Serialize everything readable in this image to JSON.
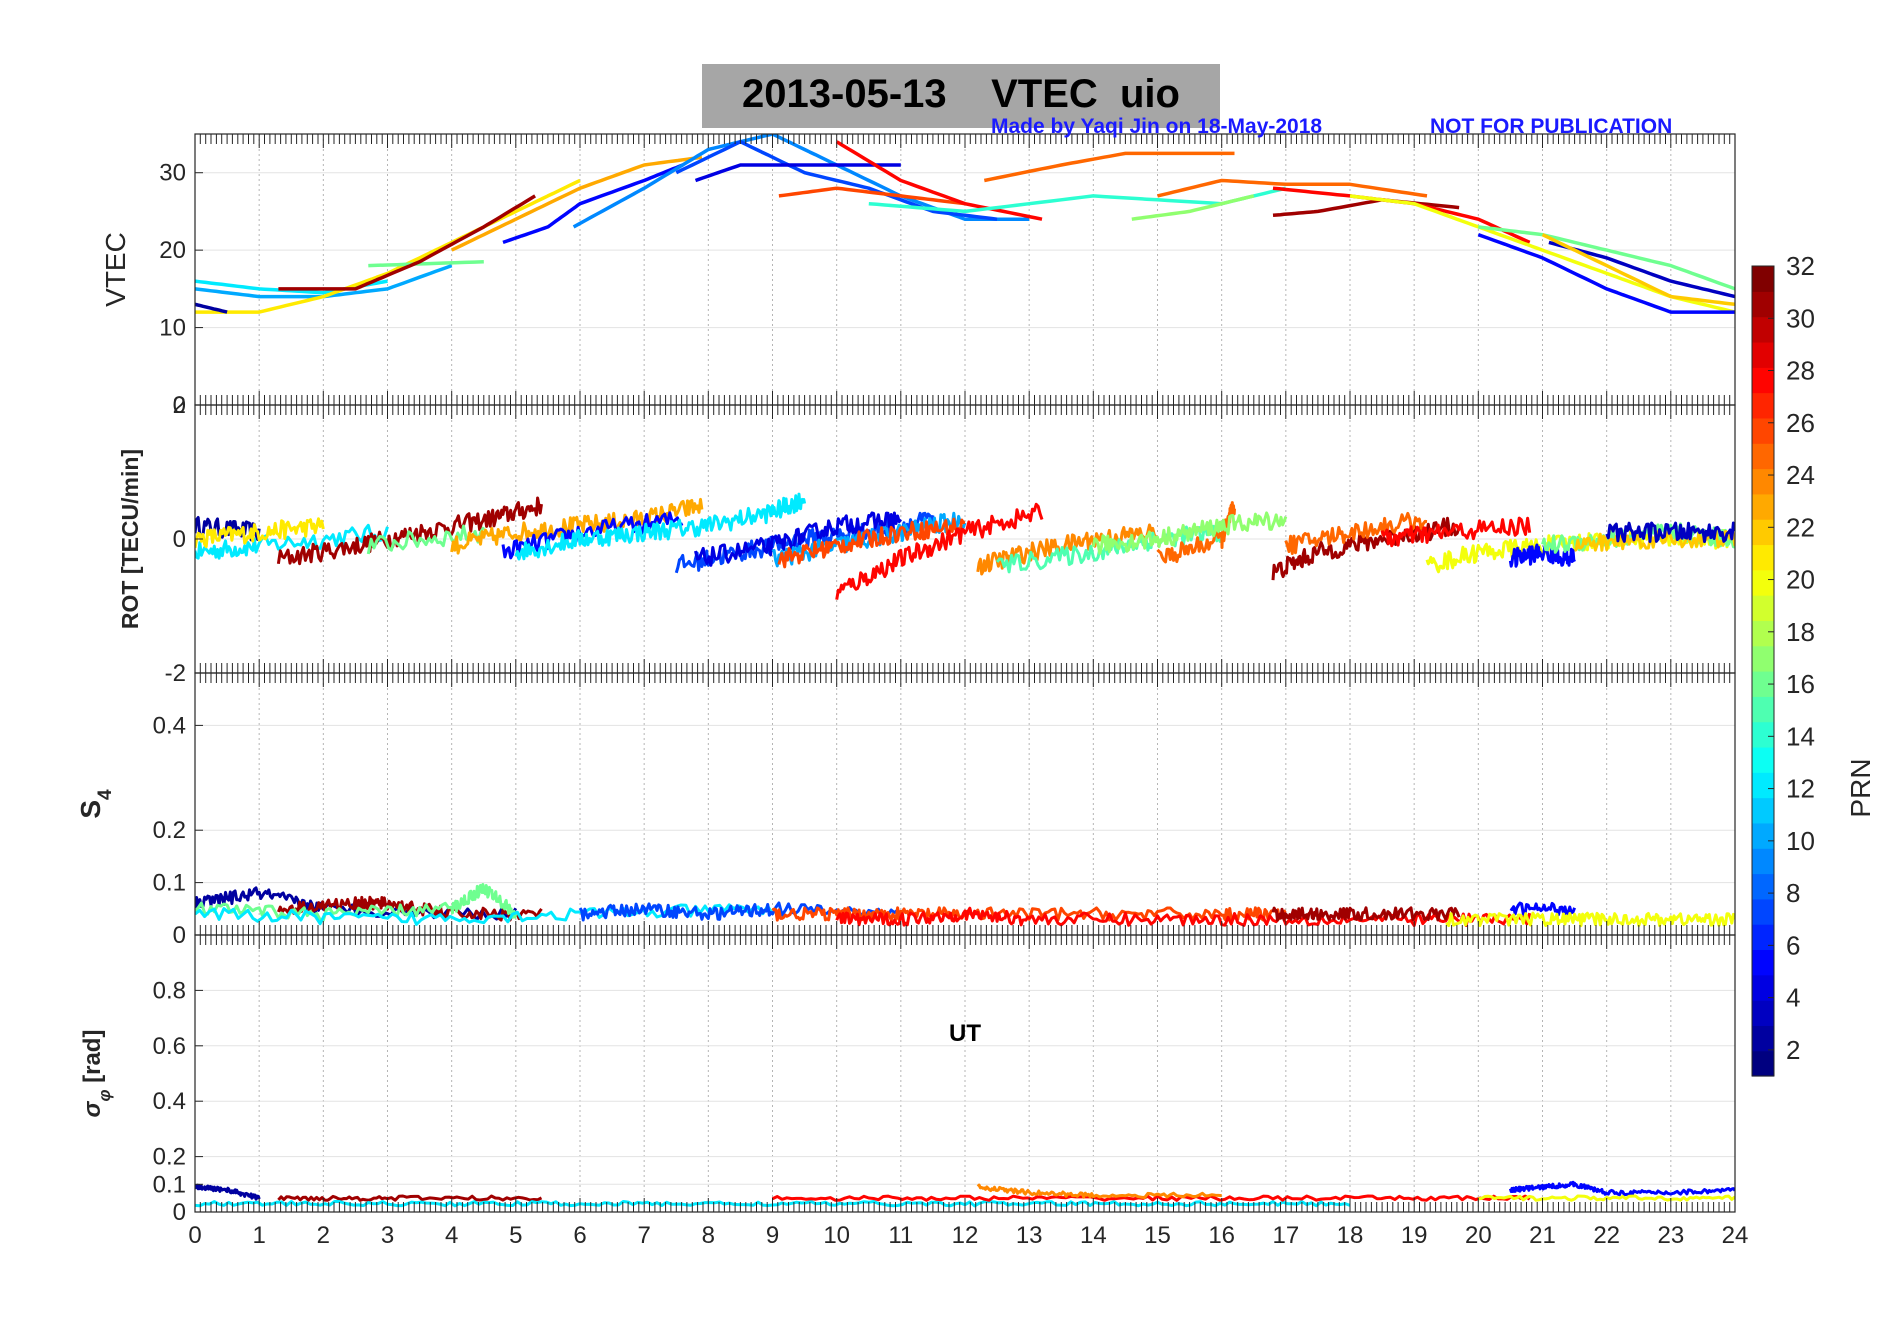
{
  "figure": {
    "title": "2013-05-13    VTEC  uio",
    "credit": "Made by Yaqi Jin on 18-May-2018",
    "notice": "NOT FOR PUBLICATION",
    "xlabel": "UT",
    "x_range": [
      0,
      24
    ],
    "x_ticks": [
      "0",
      "1",
      "2",
      "3",
      "4",
      "5",
      "6",
      "7",
      "8",
      "9",
      "10",
      "11",
      "12",
      "13",
      "14",
      "15",
      "16",
      "17",
      "18",
      "19",
      "20",
      "21",
      "22",
      "23",
      "24"
    ]
  },
  "colorbar": {
    "label": "PRN",
    "range": [
      1,
      32
    ],
    "colormap": "jet",
    "ticks": [
      "2",
      "4",
      "6",
      "8",
      "10",
      "12",
      "14",
      "16",
      "18",
      "20",
      "22",
      "24",
      "26",
      "28",
      "30",
      "32"
    ]
  },
  "chart_data": [
    {
      "type": "line",
      "ylabel": "VTEC",
      "ylim": [
        0,
        35
      ],
      "yticks": [
        "0",
        "10",
        "20",
        "30"
      ],
      "grid": true,
      "series": [
        {
          "prn": 12,
          "x": [
            0,
            1,
            2,
            3
          ],
          "y": [
            16,
            15,
            14.5,
            16
          ]
        },
        {
          "prn": 10,
          "x": [
            0,
            1,
            2,
            3,
            4
          ],
          "y": [
            15,
            14,
            14,
            15,
            18
          ]
        },
        {
          "prn": 21,
          "x": [
            0,
            1,
            2,
            3,
            4,
            5,
            6
          ],
          "y": [
            12,
            12,
            14,
            17,
            21,
            25,
            29
          ]
        },
        {
          "prn": 2,
          "x": [
            0,
            0.5
          ],
          "y": [
            13,
            12
          ]
        },
        {
          "prn": 16,
          "x": [
            2.7,
            4.5
          ],
          "y": [
            18,
            18.5
          ]
        },
        {
          "prn": 31,
          "x": [
            1.3,
            2.5,
            3.5,
            4.5,
            5.3
          ],
          "y": [
            15,
            15,
            18.5,
            23,
            27
          ]
        },
        {
          "prn": 23,
          "x": [
            4,
            5,
            6,
            7,
            7.9
          ],
          "y": [
            20,
            24,
            28,
            31,
            32
          ]
        },
        {
          "prn": 5,
          "x": [
            4.8,
            5.5,
            6,
            7,
            7.6
          ],
          "y": [
            21,
            23,
            26,
            29,
            31
          ]
        },
        {
          "prn": 9,
          "x": [
            5.9,
            7,
            8,
            9,
            10,
            11,
            12,
            13
          ],
          "y": [
            23,
            28,
            33,
            35,
            31,
            27,
            24,
            24
          ]
        },
        {
          "prn": 7,
          "x": [
            7.5,
            8.5,
            9.5,
            10.5,
            11.5,
            12.5
          ],
          "y": [
            30,
            34,
            30,
            28,
            25,
            24
          ]
        },
        {
          "prn": 4,
          "x": [
            7.8,
            8.5,
            9.5,
            10.5,
            11
          ],
          "y": [
            29,
            31,
            31,
            31,
            31
          ]
        },
        {
          "prn": 26,
          "x": [
            9.1,
            10,
            11,
            12
          ],
          "y": [
            27,
            28,
            27,
            26
          ]
        },
        {
          "prn": 28,
          "x": [
            10,
            11,
            12,
            13.2
          ],
          "y": [
            34,
            29,
            26,
            24
          ]
        },
        {
          "prn": 14,
          "x": [
            10.5,
            12,
            14,
            16,
            17
          ],
          "y": [
            26,
            25,
            27,
            26,
            28
          ]
        },
        {
          "prn": 25,
          "x": [
            12.3,
            13.5,
            14.5,
            15.5,
            16.2
          ],
          "y": [
            29,
            31,
            32.5,
            32.5,
            32.5
          ]
        },
        {
          "prn": 17,
          "x": [
            14.6,
            15.5,
            16.5
          ],
          "y": [
            24,
            25,
            27
          ]
        },
        {
          "prn": 25,
          "x": [
            15,
            16,
            17,
            18,
            19.2
          ],
          "y": [
            27,
            29,
            28.5,
            28.5,
            27
          ]
        },
        {
          "prn": 31,
          "x": [
            16.8,
            17.5,
            18.5,
            19.7
          ],
          "y": [
            24.5,
            25,
            26.5,
            25.5
          ]
        },
        {
          "prn": 28,
          "x": [
            16.8,
            18,
            19,
            20,
            20.8
          ],
          "y": [
            28,
            27,
            26,
            24,
            21
          ]
        },
        {
          "prn": 20,
          "x": [
            18,
            19,
            20,
            21,
            22,
            23,
            24
          ],
          "y": [
            27,
            26,
            23,
            20,
            17,
            14,
            12
          ]
        },
        {
          "prn": 16,
          "x": [
            20,
            21,
            22,
            23,
            24
          ],
          "y": [
            23,
            22,
            20,
            18,
            15
          ]
        },
        {
          "prn": 5,
          "x": [
            20,
            21,
            22,
            23,
            24
          ],
          "y": [
            22,
            19,
            15,
            12,
            12
          ]
        },
        {
          "prn": 3,
          "x": [
            21.1,
            22,
            23,
            24
          ],
          "y": [
            21,
            19,
            16,
            14
          ]
        },
        {
          "prn": 22,
          "x": [
            21,
            22,
            23,
            24
          ],
          "y": [
            22,
            18,
            14,
            13
          ]
        }
      ]
    },
    {
      "type": "line",
      "ylabel": "ROT [TECU/min]",
      "ylim": [
        -2,
        2
      ],
      "yticks": [
        "-2",
        "0",
        "2"
      ],
      "grid": true,
      "series": [
        {
          "prn": 2,
          "x": [
            0,
            1
          ],
          "y": [
            0.2,
            0.1
          ]
        },
        {
          "prn": 12,
          "x": [
            0,
            1,
            3
          ],
          "y": [
            -0.2,
            -0.1,
            0.1
          ]
        },
        {
          "prn": 21,
          "x": [
            0,
            1,
            2
          ],
          "y": [
            0,
            0.1,
            0.2
          ]
        },
        {
          "prn": 31,
          "x": [
            1.3,
            2.5,
            3.5,
            4.6,
            5.4
          ],
          "y": [
            -0.3,
            -0.1,
            0.1,
            0.3,
            0.5
          ]
        },
        {
          "prn": 16,
          "x": [
            2.7,
            4.5
          ],
          "y": [
            -0.1,
            0.1
          ]
        },
        {
          "prn": 23,
          "x": [
            4,
            5,
            6,
            7,
            7.9
          ],
          "y": [
            -0.1,
            0.1,
            0.2,
            0.3,
            0.5
          ]
        },
        {
          "prn": 5,
          "x": [
            4.8,
            6,
            7.6
          ],
          "y": [
            -0.2,
            0.1,
            0.3
          ]
        },
        {
          "prn": 12,
          "x": [
            5,
            6,
            7,
            8,
            9,
            9.5
          ],
          "y": [
            -0.2,
            0,
            0.1,
            0.2,
            0.4,
            0.6
          ]
        },
        {
          "prn": 7,
          "x": [
            7.5,
            8.5,
            9.5,
            10.5,
            11.5
          ],
          "y": [
            -0.4,
            -0.2,
            0,
            0.1,
            0.3
          ]
        },
        {
          "prn": 4,
          "x": [
            7.8,
            9,
            10,
            11
          ],
          "y": [
            -0.3,
            -0.1,
            0.2,
            0.3
          ]
        },
        {
          "prn": 10,
          "x": [
            9,
            10,
            11,
            12
          ],
          "y": [
            -0.3,
            -0.1,
            0.1,
            0.3
          ]
        },
        {
          "prn": 26,
          "x": [
            9.1,
            10,
            11,
            12
          ],
          "y": [
            -0.3,
            -0.1,
            0.1,
            0.2
          ]
        },
        {
          "prn": 28,
          "x": [
            10,
            11,
            12,
            13.2
          ],
          "y": [
            -0.8,
            -0.3,
            0.1,
            0.4
          ]
        },
        {
          "prn": 24,
          "x": [
            12.2,
            13,
            14,
            15
          ],
          "y": [
            -0.4,
            -0.2,
            0,
            0.1
          ]
        },
        {
          "prn": 15,
          "x": [
            12.5,
            14,
            15,
            16
          ],
          "y": [
            -0.4,
            -0.2,
            0,
            0.1
          ]
        },
        {
          "prn": 25,
          "x": [
            15,
            16,
            16.2
          ],
          "y": [
            -0.3,
            0,
            0.5
          ]
        },
        {
          "prn": 17,
          "x": [
            14,
            15,
            16,
            17
          ],
          "y": [
            -0.1,
            0,
            0.2,
            0.3
          ]
        },
        {
          "prn": 31,
          "x": [
            16.8,
            17.5,
            18.5,
            19.7
          ],
          "y": [
            -0.5,
            -0.2,
            0,
            0.2
          ]
        },
        {
          "prn": 25,
          "x": [
            17,
            18,
            19.2
          ],
          "y": [
            -0.1,
            0.1,
            0.3
          ]
        },
        {
          "prn": 28,
          "x": [
            18.5,
            19.5,
            20.8
          ],
          "y": [
            0,
            0.1,
            0.2
          ]
        },
        {
          "prn": 20,
          "x": [
            19.2,
            20,
            21,
            22,
            23,
            24
          ],
          "y": [
            -0.4,
            -0.2,
            -0.1,
            0,
            0,
            0
          ]
        },
        {
          "prn": 5,
          "x": [
            20.5,
            21,
            21.5
          ],
          "y": [
            -0.3,
            -0.2,
            -0.3
          ]
        },
        {
          "prn": 16,
          "x": [
            21,
            22,
            23,
            24
          ],
          "y": [
            -0.1,
            0,
            0.1,
            0
          ]
        },
        {
          "prn": 22,
          "x": [
            21.5,
            22.5,
            24
          ],
          "y": [
            -0.1,
            0,
            0
          ]
        },
        {
          "prn": 3,
          "x": [
            22,
            23,
            24
          ],
          "y": [
            0.1,
            0.1,
            0.1
          ]
        }
      ]
    },
    {
      "type": "line",
      "ylabel": "S4",
      "ylim": [
        0,
        0.5
      ],
      "yticks": [
        "0",
        "0.1",
        "0.2",
        "0.4"
      ],
      "grid": true,
      "series": [
        {
          "prn": 2,
          "x": [
            0,
            1,
            2,
            5
          ],
          "y": [
            0.06,
            0.08,
            0.05,
            0.04
          ]
        },
        {
          "prn": 31,
          "x": [
            1.3,
            2.5,
            3,
            4,
            5.4
          ],
          "y": [
            0.05,
            0.06,
            0.06,
            0.04,
            0.04
          ]
        },
        {
          "prn": 16,
          "x": [
            0,
            2,
            4,
            4.5,
            5
          ],
          "y": [
            0.05,
            0.04,
            0.05,
            0.09,
            0.04
          ]
        },
        {
          "prn": 12,
          "x": [
            0,
            3,
            6,
            9
          ],
          "y": [
            0.04,
            0.03,
            0.04,
            0.05
          ]
        },
        {
          "prn": 7,
          "x": [
            6,
            7,
            8,
            9,
            11
          ],
          "y": [
            0.04,
            0.05,
            0.04,
            0.05,
            0.04
          ]
        },
        {
          "prn": 26,
          "x": [
            9,
            10,
            11,
            12,
            14,
            16,
            17
          ],
          "y": [
            0.04,
            0.04,
            0.04,
            0.04,
            0.04,
            0.04,
            0.04
          ]
        },
        {
          "prn": 28,
          "x": [
            10,
            11,
            12,
            13,
            15,
            17,
            19,
            20.8
          ],
          "y": [
            0.03,
            0.03,
            0.04,
            0.03,
            0.03,
            0.03,
            0.03,
            0.03
          ]
        },
        {
          "prn": 31,
          "x": [
            16.8,
            17.5,
            18.5,
            19.7
          ],
          "y": [
            0.04,
            0.04,
            0.04,
            0.04
          ]
        },
        {
          "prn": 5,
          "x": [
            20.5,
            21.5
          ],
          "y": [
            0.05,
            0.05
          ]
        },
        {
          "prn": 20,
          "x": [
            19.5,
            21,
            22,
            23,
            24
          ],
          "y": [
            0.03,
            0.03,
            0.03,
            0.03,
            0.03
          ]
        }
      ]
    },
    {
      "type": "line",
      "ylabel": "σφ [rad]",
      "ylim": [
        0,
        1
      ],
      "yticks": [
        "0",
        "0.1",
        "0.2",
        "0.4",
        "0.6",
        "0.8"
      ],
      "grid": true,
      "series": [
        {
          "prn": 2,
          "x": [
            0,
            0.5,
            1
          ],
          "y": [
            0.09,
            0.08,
            0.05
          ]
        },
        {
          "prn": 31,
          "x": [
            1.3,
            3,
            5.4
          ],
          "y": [
            0.05,
            0.05,
            0.05
          ]
        },
        {
          "prn": 12,
          "x": [
            0,
            3,
            6,
            9,
            12,
            15,
            18
          ],
          "y": [
            0.03,
            0.03,
            0.03,
            0.03,
            0.03,
            0.03,
            0.03
          ]
        },
        {
          "prn": 28,
          "x": [
            9,
            12,
            15,
            18,
            20.8
          ],
          "y": [
            0.05,
            0.05,
            0.05,
            0.05,
            0.05
          ]
        },
        {
          "prn": 24,
          "x": [
            12.2,
            13,
            14,
            16
          ],
          "y": [
            0.09,
            0.07,
            0.06,
            0.06
          ]
        },
        {
          "prn": 5,
          "x": [
            20.5,
            21,
            21.5,
            22,
            23,
            24
          ],
          "y": [
            0.08,
            0.09,
            0.1,
            0.07,
            0.07,
            0.08
          ]
        },
        {
          "prn": 20,
          "x": [
            20,
            22,
            24
          ],
          "y": [
            0.05,
            0.05,
            0.05
          ]
        }
      ]
    }
  ]
}
